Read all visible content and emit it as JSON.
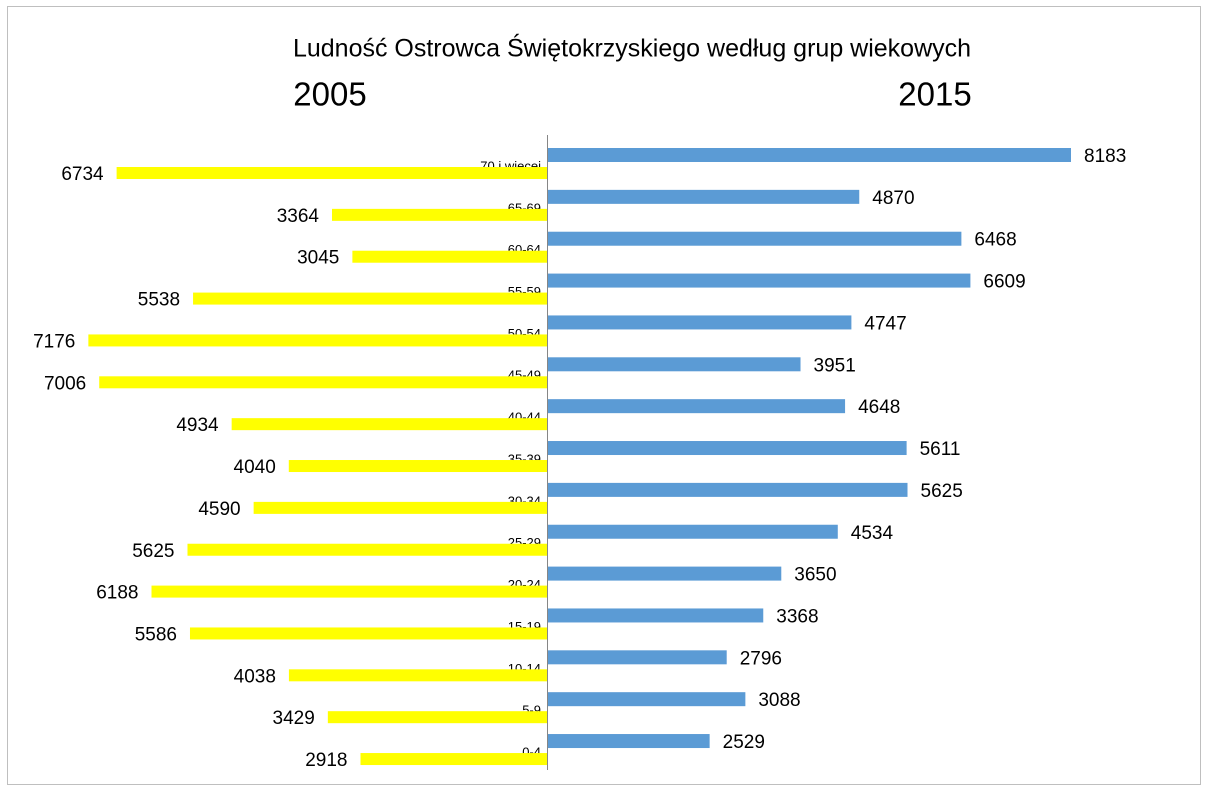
{
  "chart_data": {
    "type": "bar",
    "title": "Ludność Ostrowca Świętokrzyskiego według grup wiekowych",
    "categories": [
      "70 i więcej",
      "65-69",
      "60-64",
      "55-59",
      "50-54",
      "45-49",
      "40-44",
      "35-39",
      "30-34",
      "25-29",
      "20-24",
      "15-19",
      "10-14",
      "5-9",
      "0-4"
    ],
    "series": [
      {
        "name": "2005",
        "color": "#ffff00",
        "values": [
          6734,
          3364,
          3045,
          5538,
          7176,
          7006,
          4934,
          4040,
          4590,
          5625,
          6188,
          5586,
          4038,
          3429,
          2918
        ]
      },
      {
        "name": "2015",
        "color": "#5b9bd5",
        "values": [
          8183,
          4870,
          6468,
          6609,
          4747,
          3951,
          4648,
          5611,
          5625,
          4534,
          3650,
          3368,
          2796,
          3088,
          2529
        ]
      }
    ]
  }
}
